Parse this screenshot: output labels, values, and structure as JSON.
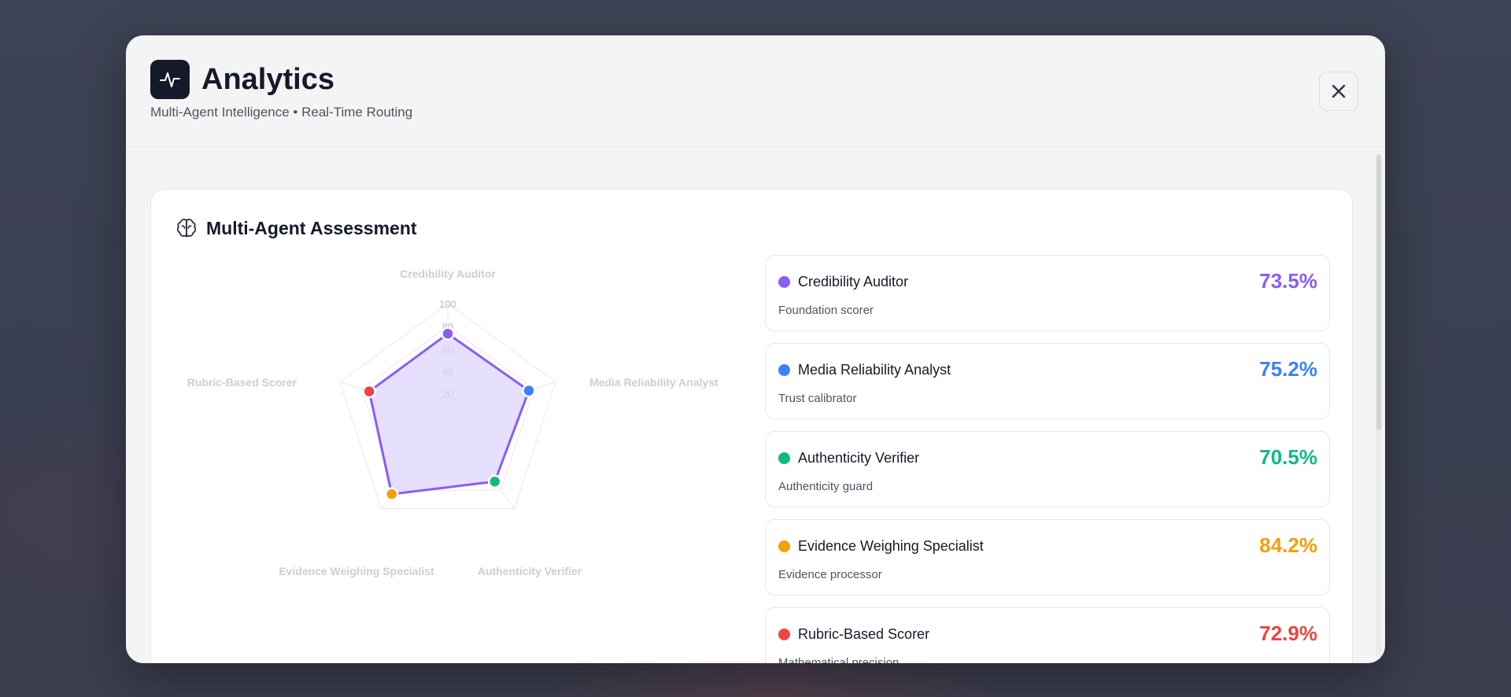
{
  "header": {
    "title": "Analytics",
    "subtitle": "Multi-Agent Intelligence • Real-Time Routing",
    "logo_icon": "activity-pulse-icon",
    "close_icon": "close-icon"
  },
  "assessment": {
    "title": "Multi-Agent Assessment",
    "title_icon": "brain-icon"
  },
  "chart_data": {
    "type": "radar",
    "axes": [
      "Credibility Auditor",
      "Media Reliability Analyst",
      "Authenticity Verifier",
      "Evidence Weighing Specialist",
      "Rubric-Based Scorer"
    ],
    "ticks": [
      20,
      40,
      60,
      80,
      100
    ],
    "range": [
      0,
      100
    ],
    "values": [
      73.5,
      75.2,
      70.5,
      84.2,
      72.9
    ],
    "point_colors": [
      "#8b5cf6",
      "#3b82f6",
      "#10b981",
      "#f59e0b",
      "#ef4444"
    ],
    "line_color": "#8b5cf6",
    "fill_color": "#ddd6fe"
  },
  "agents": [
    {
      "name": "Credibility Auditor",
      "description": "Foundation scorer",
      "score": "73.5%",
      "color": "#8b5cf6"
    },
    {
      "name": "Media Reliability Analyst",
      "description": "Trust calibrator",
      "score": "75.2%",
      "color": "#3b82f6"
    },
    {
      "name": "Authenticity Verifier",
      "description": "Authenticity guard",
      "score": "70.5%",
      "color": "#10b981"
    },
    {
      "name": "Evidence Weighing Specialist",
      "description": "Evidence processor",
      "score": "84.2%",
      "color": "#f59e0b"
    },
    {
      "name": "Rubric-Based Scorer",
      "description": "Mathematical precision",
      "score": "72.9%",
      "color": "#ef4444"
    }
  ]
}
